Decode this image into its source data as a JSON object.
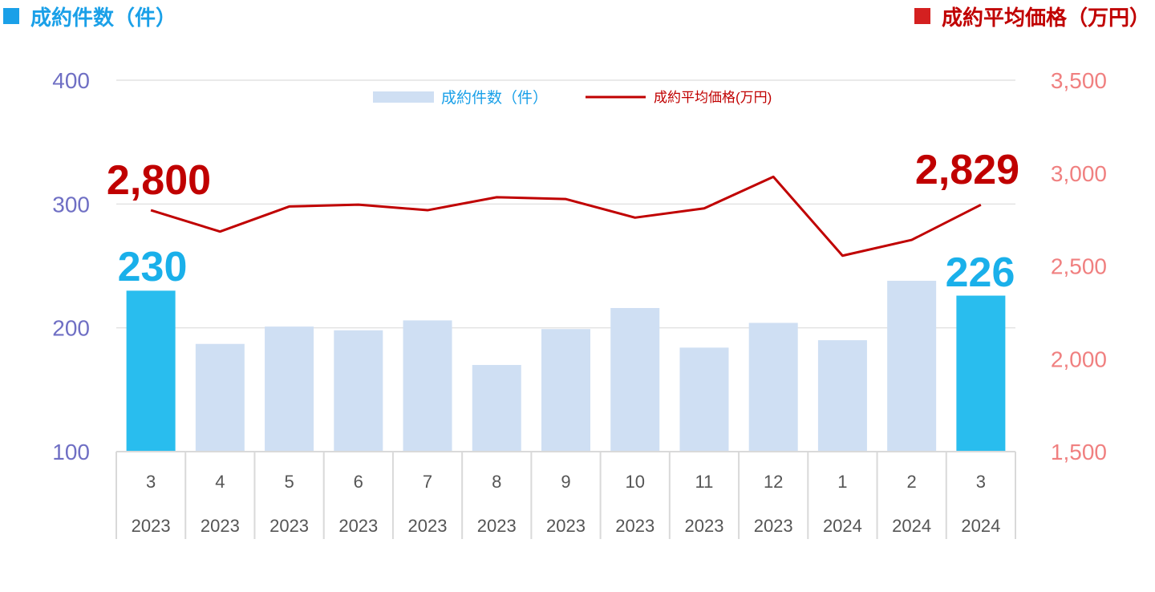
{
  "header": {
    "left_title": "成約件数（件）",
    "right_title": "成約平均価格（万円）"
  },
  "colors": {
    "bar_normal": "#cfdff3",
    "bar_highlight": "#29bdee",
    "line": "#c00000",
    "left_axis": "#6f6fc4",
    "right_axis": "#f08080"
  },
  "chart_data": {
    "type": "bar+line",
    "categories": [
      "3",
      "4",
      "5",
      "6",
      "7",
      "8",
      "9",
      "10",
      "11",
      "12",
      "1",
      "2",
      "3"
    ],
    "years": [
      "2023",
      "2023",
      "2023",
      "2023",
      "2023",
      "2023",
      "2023",
      "2023",
      "2023",
      "2023",
      "2024",
      "2024",
      "2024"
    ],
    "series": [
      {
        "name": "成約件数（件）",
        "type": "bar",
        "axis": "left",
        "values": [
          230,
          187,
          201,
          198,
          206,
          170,
          199,
          216,
          184,
          204,
          190,
          238,
          226
        ],
        "highlight": [
          true,
          false,
          false,
          false,
          false,
          false,
          false,
          false,
          false,
          false,
          false,
          false,
          true
        ]
      },
      {
        "name": "成約平均価格(万円)",
        "type": "line",
        "axis": "right",
        "values": [
          2800,
          2685,
          2820,
          2830,
          2800,
          2870,
          2860,
          2760,
          2810,
          2980,
          2555,
          2640,
          2829
        ]
      }
    ],
    "ylim_left": [
      100,
      400
    ],
    "yticks_left": [
      100,
      200,
      300,
      400
    ],
    "ylim_right": [
      1500,
      3500
    ],
    "yticks_right": [
      "1,500",
      "2,000",
      "2,500",
      "3,000",
      "3,500"
    ],
    "labels": {
      "count_first": "230",
      "count_last": "226",
      "price_first": "2,800",
      "price_last": "2,829"
    },
    "legend_position": "top-center",
    "grid": true
  }
}
